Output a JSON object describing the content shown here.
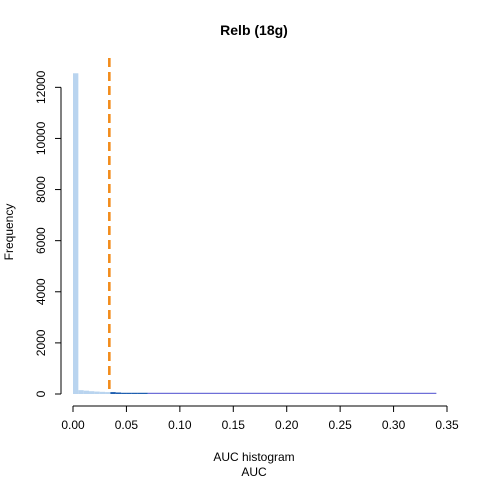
{
  "chart_data": {
    "type": "bar",
    "title": "Relb (18g)",
    "subtitle": "AUC histogram",
    "xlabel": "AUC",
    "ylabel": "Frequency",
    "xlim": [
      0,
      0.35
    ],
    "ylim": [
      0,
      12600
    ],
    "x_ticks": [
      "0.00",
      "0.05",
      "0.10",
      "0.15",
      "0.20",
      "0.25",
      "0.30",
      "0.35"
    ],
    "y_ticks": [
      "0",
      "2000",
      "4000",
      "6000",
      "8000",
      "10000",
      "12000"
    ],
    "threshold_line": {
      "x": 0.034,
      "color": "#f28c1b",
      "style": "dashed"
    },
    "series": [
      {
        "color": "#b9d4ef",
        "bins": [
          {
            "x0": 0.0,
            "x1": 0.005,
            "value": 12550
          },
          {
            "x0": 0.005,
            "x1": 0.01,
            "value": 150
          },
          {
            "x0": 0.01,
            "x1": 0.015,
            "value": 130
          },
          {
            "x0": 0.015,
            "x1": 0.02,
            "value": 110
          },
          {
            "x0": 0.02,
            "x1": 0.025,
            "value": 95
          },
          {
            "x0": 0.025,
            "x1": 0.03,
            "value": 85
          },
          {
            "x0": 0.03,
            "x1": 0.035,
            "value": 75
          },
          {
            "x0": 0.035,
            "x1": 0.04,
            "value": 65
          },
          {
            "x0": 0.04,
            "x1": 0.045,
            "value": 55
          },
          {
            "x0": 0.045,
            "x1": 0.05,
            "value": 45
          },
          {
            "x0": 0.05,
            "x1": 0.055,
            "value": 38
          },
          {
            "x0": 0.055,
            "x1": 0.06,
            "value": 30
          },
          {
            "x0": 0.06,
            "x1": 0.07,
            "value": 22
          },
          {
            "x0": 0.07,
            "x1": 0.08,
            "value": 16
          },
          {
            "x0": 0.08,
            "x1": 0.09,
            "value": 12
          },
          {
            "x0": 0.09,
            "x1": 0.1,
            "value": 9
          },
          {
            "x0": 0.1,
            "x1": 0.34,
            "value": 4
          }
        ]
      },
      {
        "color": "#1f5fb0",
        "bins": [
          {
            "x0": 0.035,
            "x1": 0.04,
            "value": 75
          },
          {
            "x0": 0.04,
            "x1": 0.045,
            "value": 60
          },
          {
            "x0": 0.045,
            "x1": 0.05,
            "value": 45
          },
          {
            "x0": 0.05,
            "x1": 0.055,
            "value": 30
          },
          {
            "x0": 0.055,
            "x1": 0.06,
            "value": 18
          },
          {
            "x0": 0.06,
            "x1": 0.07,
            "value": 10
          }
        ]
      },
      {
        "color": "#6f6fd8",
        "bins": [
          {
            "x0": 0.07,
            "x1": 0.34,
            "value": 3
          }
        ]
      }
    ]
  }
}
